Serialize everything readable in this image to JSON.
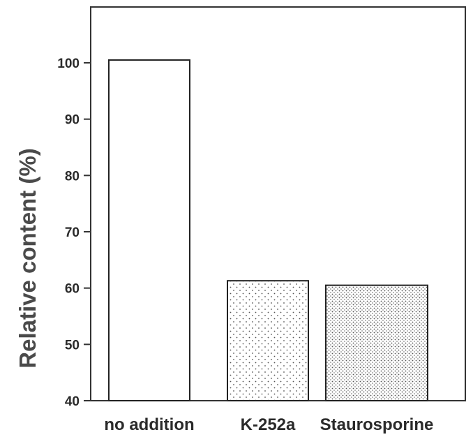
{
  "chart_data": {
    "type": "bar",
    "categories": [
      "no addition",
      "K-252a",
      "Staurosporine"
    ],
    "values": [
      100.5,
      61.3,
      60.5
    ],
    "bar_fills": [
      "none",
      "sparse-dots",
      "dense-dots"
    ],
    "title": "",
    "xlabel": "",
    "ylabel": "Relative content (%)",
    "ylim": [
      40,
      110
    ],
    "yticks": [
      40,
      50,
      60,
      70,
      80,
      90,
      100
    ],
    "grid": false,
    "legend": "none"
  },
  "colors": {
    "axis": "#333333",
    "bar_stroke": "#222222",
    "bar_fill": "#ffffff",
    "dots": "#555555"
  }
}
